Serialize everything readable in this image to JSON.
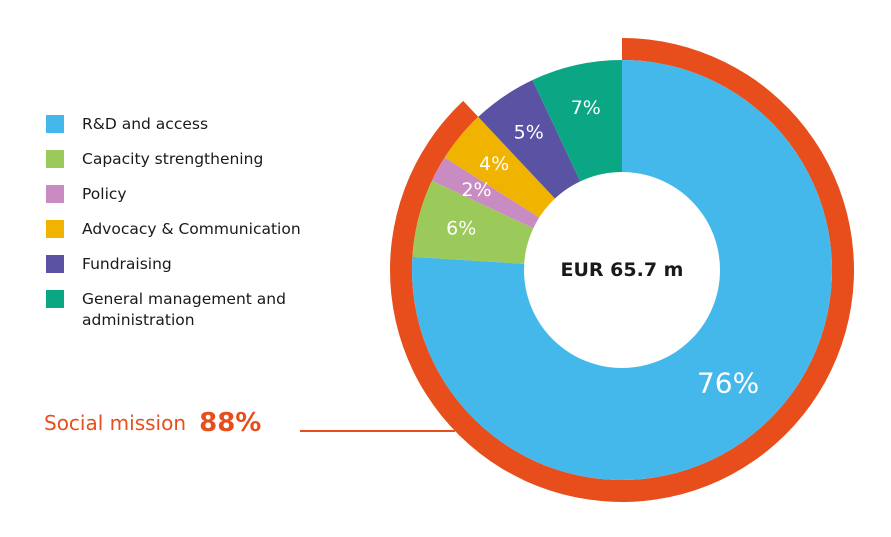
{
  "chart_data": {
    "type": "pie",
    "variant": "donut",
    "center_label": "EUR 65.7 m",
    "categories": [
      "R&D and access",
      "Capacity strengthening",
      "Policy",
      "Advocacy & Communication",
      "Fundraising",
      "General management and administration"
    ],
    "values": [
      76,
      6,
      2,
      4,
      5,
      7
    ],
    "value_labels": [
      "76%",
      "6%",
      "2%",
      "4%",
      "5%",
      "7%"
    ],
    "colors": [
      "#44b8ea",
      "#9bc95a",
      "#c98cc2",
      "#f0b400",
      "#5a53a3",
      "#0ba784"
    ],
    "legend_position": "left",
    "grouping": {
      "label": "Social mission",
      "value": 88,
      "value_label": "88%",
      "members": [
        "R&D and access",
        "Capacity strengthening",
        "Policy",
        "Advocacy & Communication"
      ],
      "color": "#e84e1b"
    }
  }
}
